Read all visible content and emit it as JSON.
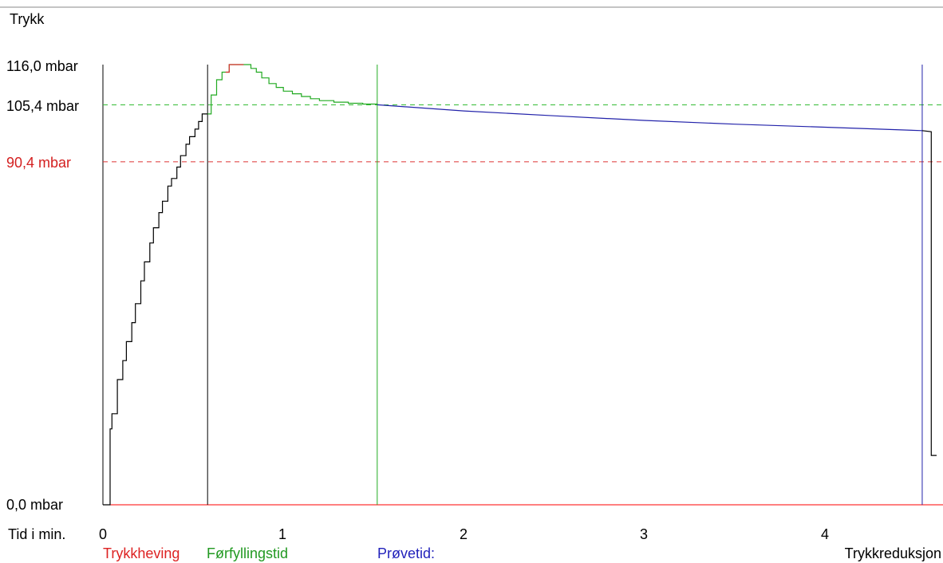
{
  "chart_data": {
    "type": "line",
    "ylabel": "Trykk",
    "xlabel": "Tid i min.",
    "xlim": [
      0,
      4.6
    ],
    "ylim": [
      0,
      116
    ],
    "y_tick_labels": [
      {
        "value": 116.0,
        "label": "116,0 mbar",
        "color": "#000000"
      },
      {
        "value": 105.4,
        "label": "105,4 mbar",
        "color": "#000000"
      },
      {
        "value": 90.4,
        "label": "90,4 mbar",
        "color": "#d42020"
      },
      {
        "value": 0.0,
        "label": "0,0 mbar",
        "color": "#000000"
      }
    ],
    "x_tick_labels": [
      {
        "value": 0,
        "label": "0"
      },
      {
        "value": 1,
        "label": "1"
      },
      {
        "value": 2,
        "label": "2"
      },
      {
        "value": 3,
        "label": "3"
      },
      {
        "value": 4,
        "label": "4"
      }
    ],
    "reference_lines": [
      {
        "value": 105.4,
        "color": "#33bb33",
        "style": "dashed"
      },
      {
        "value": 90.4,
        "color": "#dd3333",
        "style": "dashed"
      }
    ],
    "phase_markers": [
      {
        "x": 0.58,
        "color": "#000000"
      },
      {
        "x": 1.52,
        "color": "#22aa22"
      },
      {
        "x": 4.54,
        "color": "#2222aa"
      }
    ],
    "phase_labels": [
      {
        "label": "Trykkheving",
        "color": "#dd2222"
      },
      {
        "label": "Førfyllingstid",
        "color": "#229922"
      },
      {
        "label": "Prøvetid:",
        "color": "#2222bb"
      },
      {
        "label": "Trykkreduksjon",
        "color": "#000000"
      }
    ],
    "series": [
      {
        "color": "#000000",
        "step": true,
        "points": [
          [
            0.0,
            0
          ],
          [
            0.04,
            0
          ],
          [
            0.04,
            20
          ],
          [
            0.05,
            24
          ],
          [
            0.08,
            33
          ],
          [
            0.11,
            38
          ],
          [
            0.13,
            43
          ],
          [
            0.16,
            48
          ],
          [
            0.18,
            53
          ],
          [
            0.21,
            59
          ],
          [
            0.23,
            64
          ],
          [
            0.26,
            69
          ],
          [
            0.28,
            73
          ],
          [
            0.31,
            77
          ],
          [
            0.33,
            80
          ],
          [
            0.36,
            84
          ],
          [
            0.38,
            86
          ],
          [
            0.41,
            89
          ],
          [
            0.43,
            92
          ],
          [
            0.46,
            95
          ],
          [
            0.48,
            97
          ],
          [
            0.51,
            99
          ],
          [
            0.53,
            101
          ],
          [
            0.55,
            103
          ],
          [
            0.58,
            103
          ]
        ]
      },
      {
        "color": "#22aa22",
        "step": true,
        "points": [
          [
            0.58,
            103
          ],
          [
            0.6,
            108
          ],
          [
            0.63,
            112
          ],
          [
            0.66,
            114
          ],
          [
            0.68,
            114
          ],
          [
            0.7,
            116
          ],
          [
            0.8,
            116
          ],
          [
            0.82,
            115
          ],
          [
            0.85,
            114
          ],
          [
            0.88,
            112.5
          ],
          [
            0.92,
            111
          ],
          [
            0.96,
            110
          ],
          [
            1.0,
            109
          ],
          [
            1.05,
            108.3
          ],
          [
            1.1,
            107.6
          ],
          [
            1.15,
            107.0
          ],
          [
            1.2,
            106.5
          ],
          [
            1.28,
            106.1
          ],
          [
            1.36,
            105.8
          ],
          [
            1.44,
            105.6
          ],
          [
            1.52,
            105.4
          ]
        ]
      },
      {
        "color": "#dd3333",
        "step": true,
        "points": [
          [
            0.68,
            114
          ],
          [
            0.7,
            116
          ],
          [
            0.78,
            116
          ]
        ]
      },
      {
        "color": "#2222aa",
        "step": false,
        "points": [
          [
            1.52,
            105.4
          ],
          [
            2.0,
            103.8
          ],
          [
            2.5,
            102.5
          ],
          [
            3.0,
            101.3
          ],
          [
            3.5,
            100.3
          ],
          [
            4.0,
            99.5
          ],
          [
            4.54,
            98.6
          ]
        ]
      },
      {
        "color": "#000000",
        "step": false,
        "points": [
          [
            4.54,
            98.6
          ],
          [
            4.59,
            98.3
          ],
          [
            4.59,
            13
          ],
          [
            4.62,
            13
          ]
        ]
      }
    ]
  }
}
